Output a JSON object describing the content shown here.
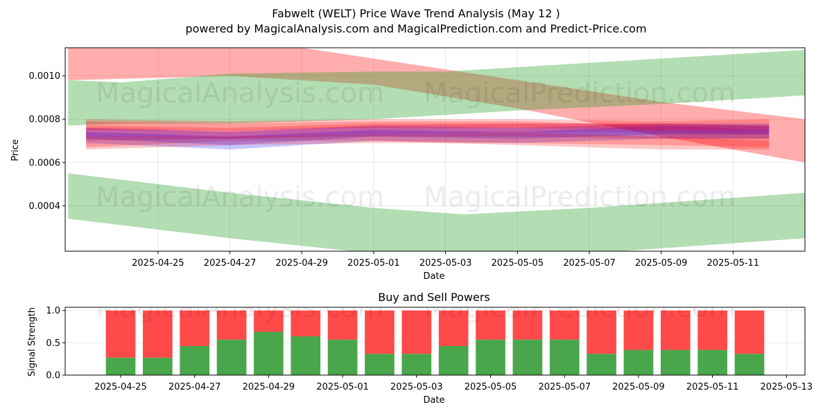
{
  "chart_data": [
    {
      "type": "area",
      "title": "Fabwelt (WELT) Price Wave Trend Analysis (May 12 )",
      "subtitle": "powered by MagicalAnalysis.com and MagicalPrediction.com and Predict-Price.com",
      "xlabel": "Date",
      "ylabel": "Price",
      "ylim": [
        0.00019,
        0.00113
      ],
      "y_ticks": [
        "0.0004",
        "0.0006",
        "0.0008",
        "0.0010"
      ],
      "y_tick_values": [
        0.0004,
        0.0006,
        0.0008,
        0.001
      ],
      "x_ticks": [
        "2025-04-25",
        "2025-04-27",
        "2025-04-29",
        "2025-05-01",
        "2025-05-03",
        "2025-05-05",
        "2025-05-07",
        "2025-05-09",
        "2025-05-11"
      ],
      "x_tick_dates": [
        "2025-04-25",
        "2025-04-27",
        "2025-04-29",
        "2025-05-01",
        "2025-05-03",
        "2025-05-05",
        "2025-05-07",
        "2025-05-09",
        "2025-05-11"
      ],
      "xlim": [
        "2025-04-22T10:00",
        "2025-05-13T00:00"
      ],
      "grid": true,
      "watermarks": [
        "MagicalAnalysis.com",
        "MagicalPrediction.com"
      ],
      "colors": {
        "green_band": "#2ca02c",
        "red_band": "#ff0000",
        "blue_band": "#0000ff",
        "magenta_band": "#c0007f"
      },
      "wide_bands": [
        {
          "color": "red",
          "x": [
            "2025-04-22T12:00",
            "2025-04-27T00:00",
            "2025-05-01T00:00",
            "2025-05-05T00:00",
            "2025-05-09T00:00",
            "2025-05-13T00:00"
          ],
          "upper": [
            0.00126,
            0.00118,
            0.00108,
            0.00098,
            0.00088,
            0.0008
          ],
          "lower": [
            0.00098,
            0.001,
            0.00096,
            0.00085,
            0.00072,
            0.0006
          ]
        },
        {
          "color": "green",
          "x": [
            "2025-04-22T12:00",
            "2025-04-24T00:00",
            "2025-04-27T00:00",
            "2025-05-01T00:00",
            "2025-05-03T00:00",
            "2025-05-05T00:00",
            "2025-05-09T00:00",
            "2025-05-13T00:00"
          ],
          "upper": [
            0.00098,
            0.00097,
            0.00101,
            0.00102,
            0.00102,
            0.00104,
            0.00108,
            0.00112
          ],
          "lower": [
            0.00077,
            0.00078,
            0.00078,
            0.0008,
            0.00082,
            0.00084,
            0.00087,
            0.00091
          ]
        },
        {
          "color": "green",
          "x": [
            "2025-04-22T12:00",
            "2025-04-27T00:00",
            "2025-05-01T00:00",
            "2025-05-03T12:00",
            "2025-05-07T00:00",
            "2025-05-13T00:00"
          ],
          "upper": [
            0.00055,
            0.00046,
            0.00039,
            0.00036,
            0.00039,
            0.00046
          ],
          "lower": [
            0.00034,
            0.00025,
            0.00018,
            0.00015,
            0.00018,
            0.00025
          ]
        }
      ],
      "narrow_bands": [
        {
          "color": "red",
          "x": [
            "2025-04-23",
            "2025-04-27",
            "2025-05-01",
            "2025-05-05",
            "2025-05-09",
            "2025-05-12"
          ],
          "upper": [
            0.00079,
            0.00078,
            0.00079,
            0.00079,
            0.00077,
            0.00075
          ],
          "lower": [
            0.00067,
            0.0007,
            0.0007,
            0.00068,
            0.00066,
            0.00066
          ]
        },
        {
          "color": "red",
          "x": [
            "2025-04-23",
            "2025-04-27",
            "2025-05-01",
            "2025-05-05",
            "2025-05-09",
            "2025-05-12"
          ],
          "upper": [
            0.00077,
            0.00076,
            0.00078,
            0.00078,
            0.00078,
            0.00077
          ],
          "lower": [
            0.0007,
            0.00071,
            0.00072,
            0.00072,
            0.00071,
            0.00071
          ]
        },
        {
          "color": "blue",
          "x": [
            "2025-04-23",
            "2025-04-27",
            "2025-05-01",
            "2025-05-05",
            "2025-05-09",
            "2025-05-12"
          ],
          "upper": [
            0.00074,
            0.00072,
            0.00075,
            0.00074,
            0.00077,
            0.00077
          ],
          "lower": [
            0.00069,
            0.00066,
            0.0007,
            0.00069,
            0.00071,
            0.00071
          ]
        },
        {
          "color": "blue",
          "x": [
            "2025-04-23",
            "2025-04-27",
            "2025-05-01",
            "2025-05-05",
            "2025-05-09",
            "2025-05-12"
          ],
          "upper": [
            0.00076,
            0.00074,
            0.00077,
            0.00076,
            0.00078,
            0.00078
          ],
          "lower": [
            0.00071,
            0.00068,
            0.00072,
            0.00071,
            0.00073,
            0.00073
          ]
        },
        {
          "color": "magenta",
          "x": [
            "2025-04-23",
            "2025-04-27",
            "2025-05-01",
            "2025-05-05",
            "2025-05-09",
            "2025-05-12"
          ],
          "upper": [
            0.00076,
            0.00075,
            0.00077,
            0.00078,
            0.00078,
            0.00077
          ],
          "lower": [
            0.00072,
            0.00071,
            0.00073,
            0.00074,
            0.00074,
            0.00073
          ]
        },
        {
          "color": "red",
          "x": [
            "2025-04-23",
            "2025-04-27",
            "2025-05-01",
            "2025-05-05",
            "2025-05-09",
            "2025-05-12"
          ],
          "upper": [
            0.0008,
            0.00079,
            0.0008,
            0.0008,
            0.00079,
            0.0008
          ],
          "lower": [
            0.00075,
            0.00075,
            0.00076,
            0.00076,
            0.00075,
            0.00075
          ]
        },
        {
          "color": "red",
          "x": [
            "2025-04-23",
            "2025-04-27",
            "2025-05-01",
            "2025-05-05",
            "2025-05-09",
            "2025-05-12"
          ],
          "upper": [
            0.00072,
            0.00072,
            0.00073,
            0.00074,
            0.00072,
            0.0007
          ],
          "lower": [
            0.00066,
            0.00068,
            0.00069,
            0.00069,
            0.00068,
            0.00067
          ]
        }
      ]
    },
    {
      "type": "bar",
      "title": "Buy and Sell Powers",
      "xlabel": "Date",
      "ylabel": "Signal Strength",
      "ylim": [
        0,
        1.05
      ],
      "y_ticks": [
        "0.0",
        "0.5",
        "1.0"
      ],
      "y_tick_values": [
        0.0,
        0.5,
        1.0
      ],
      "x_ticks": [
        "2025-04-25",
        "2025-04-27",
        "2025-04-29",
        "2025-05-01",
        "2025-05-03",
        "2025-05-05",
        "2025-05-07",
        "2025-05-09",
        "2025-05-11",
        "2025-05-13"
      ],
      "x_tick_dates": [
        "2025-04-25",
        "2025-04-27",
        "2025-04-29",
        "2025-05-01",
        "2025-05-03",
        "2025-05-05",
        "2025-05-07",
        "2025-05-09",
        "2025-05-11",
        "2025-05-13"
      ],
      "xlim": [
        "2025-04-23T12:00",
        "2025-05-13T12:00"
      ],
      "grid": true,
      "colors": {
        "buy": "#4aa64a",
        "sell": "#ff4a4a"
      },
      "categories": [
        "2025-04-25",
        "2025-04-26",
        "2025-04-27",
        "2025-04-28",
        "2025-04-29",
        "2025-04-30",
        "2025-05-01",
        "2025-05-02",
        "2025-05-03",
        "2025-05-04",
        "2025-05-05",
        "2025-05-06",
        "2025-05-07",
        "2025-05-08",
        "2025-05-09",
        "2025-05-10",
        "2025-05-11",
        "2025-05-12"
      ],
      "series": [
        {
          "values": [
            0.27,
            0.27,
            0.45,
            0.55,
            0.67,
            0.6,
            0.55,
            0.33,
            0.33,
            0.45,
            0.55,
            0.55,
            0.55,
            0.33,
            0.39,
            0.39,
            0.39,
            0.33
          ]
        },
        {
          "values": [
            0.73,
            0.73,
            0.55,
            0.45,
            0.33,
            0.4,
            0.45,
            0.67,
            0.67,
            0.55,
            0.45,
            0.45,
            0.45,
            0.67,
            0.61,
            0.61,
            0.61,
            0.67
          ]
        }
      ],
      "watermarks": [
        "MagicalAnalysis.com",
        "MagicalPrediction.com"
      ]
    }
  ]
}
